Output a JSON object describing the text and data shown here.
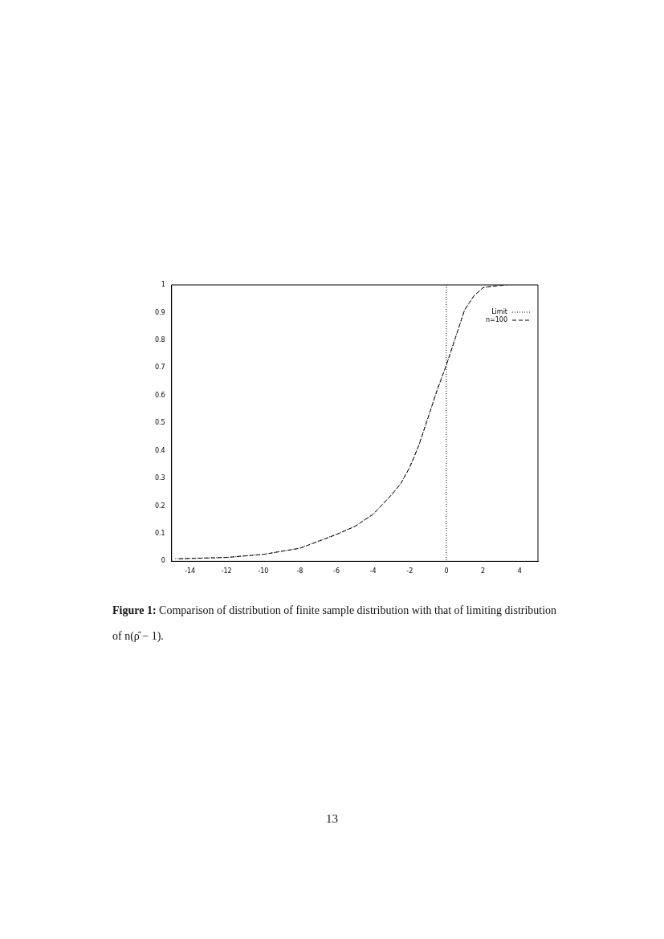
{
  "chart_data": {
    "type": "line",
    "x": [
      -14.8,
      -12,
      -10,
      -8,
      -6,
      -5,
      -4,
      -3,
      -2.5,
      -2,
      -1.5,
      -1,
      -0.5,
      0,
      0.5,
      1,
      1.5,
      2,
      2.5,
      3
    ],
    "series": [
      {
        "name": "Limit",
        "color": "#000000",
        "line_style": "dotted",
        "values": [
          0.01,
          0.014,
          0.025,
          0.048,
          0.098,
          0.127,
          0.17,
          0.24,
          0.28,
          0.34,
          0.42,
          0.52,
          0.62,
          0.71,
          0.81,
          0.91,
          0.96,
          0.99,
          0.995,
          1.0
        ]
      },
      {
        "name": "n=100",
        "color": "#000000",
        "line_style": "dashed",
        "x": [
          -14.6,
          -12,
          -10,
          -8,
          -6,
          -5,
          -4,
          -3,
          -2.5,
          -2,
          -1.5,
          -1,
          -0.5,
          0,
          0.5,
          1,
          1.5,
          2,
          2.5,
          3.3
        ],
        "values": [
          0.009,
          0.014,
          0.025,
          0.047,
          0.097,
          0.126,
          0.17,
          0.24,
          0.28,
          0.34,
          0.42,
          0.52,
          0.62,
          0.71,
          0.81,
          0.91,
          0.96,
          0.99,
          0.995,
          1.0
        ]
      }
    ],
    "xlim": [
      -15,
      5
    ],
    "xticks": [
      -14,
      -12,
      -10,
      -8,
      -6,
      -4,
      -2,
      0,
      2,
      4
    ],
    "ylim": [
      0,
      1
    ],
    "yticks": [
      0,
      0.1,
      0.2,
      0.3,
      0.4,
      0.5,
      0.6,
      0.7,
      0.8,
      0.9,
      1
    ],
    "ref_lines": [
      {
        "axis": "x",
        "value": 0,
        "line_style": "dotted",
        "color": "#000000"
      }
    ],
    "legend": "top right",
    "grid": false,
    "marker": "none",
    "annotations": [
      "Figure 1: Comparison of distribution of finite sample distribution with that of limiting distribution of n(ρ̂ − 1).",
      "13"
    ]
  }
}
